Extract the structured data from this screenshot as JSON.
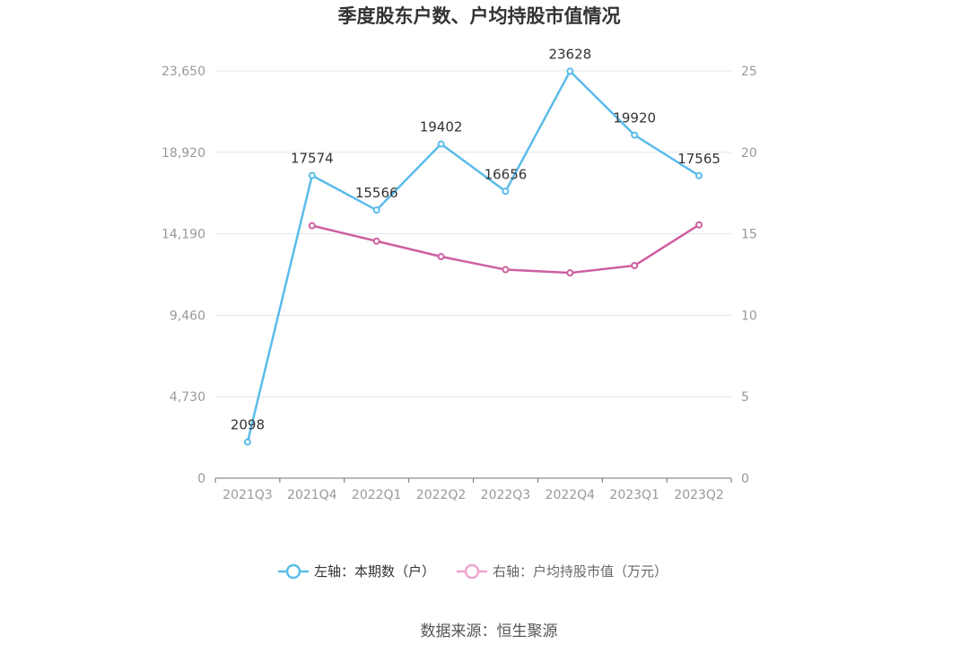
{
  "chart_data": {
    "type": "line",
    "title": "季度股东户数、户均持股市值情况",
    "categories": [
      "2021Q3",
      "2021Q4",
      "2022Q1",
      "2022Q2",
      "2022Q3",
      "2022Q4",
      "2023Q1",
      "2023Q2"
    ],
    "y_left": {
      "ticks": [
        "0",
        "4,730",
        "9,460",
        "14,190",
        "18,920",
        "23,650"
      ],
      "ylim": [
        0,
        23650
      ]
    },
    "y_right": {
      "ticks": [
        "0",
        "5",
        "10",
        "15",
        "20",
        "25"
      ],
      "ylim": [
        0,
        25
      ]
    },
    "grid": true,
    "legend_position": "bottom",
    "series": [
      {
        "name": "左轴：本期数（户）",
        "axis": "left",
        "color": "#5bbcea",
        "values": [
          2098,
          17574,
          15566,
          19402,
          16656,
          23628,
          19920,
          17565
        ],
        "labels": [
          "2098",
          "17574",
          "15566",
          "19402",
          "16656",
          "23628",
          "19920",
          "17565"
        ]
      },
      {
        "name": "右轴：户均持股市值（万元）",
        "axis": "right",
        "color": "#cd5fa0",
        "legend_color": "#e9a6cd",
        "values": [
          null,
          15.5,
          14.55,
          13.6,
          12.8,
          12.6,
          13.05,
          15.55
        ]
      }
    ],
    "source": "数据来源：恒生聚源"
  }
}
